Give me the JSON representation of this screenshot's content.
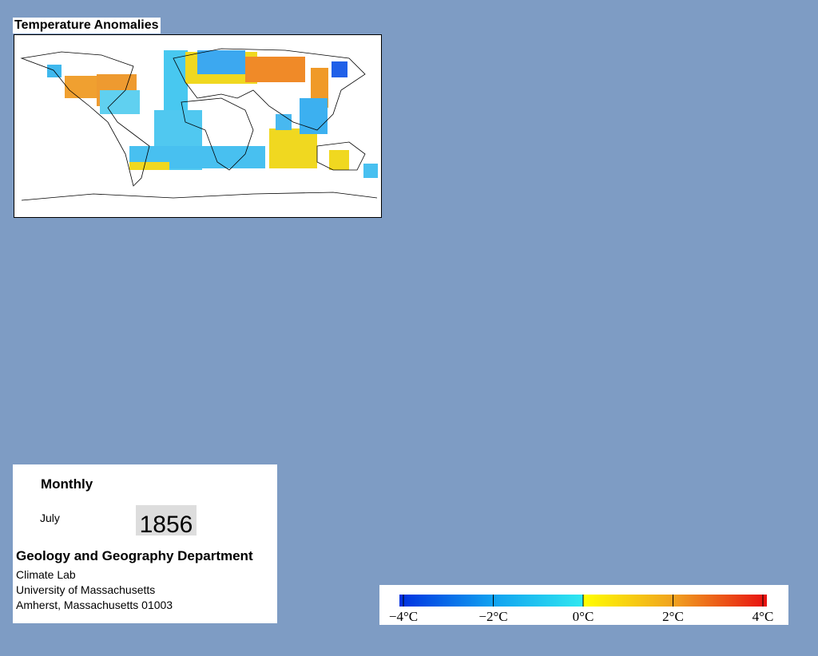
{
  "header": {
    "title": "Temperature Anomalies"
  },
  "info": {
    "period": "Monthly",
    "month": "July",
    "year": "1856",
    "department": "Geology and Geography Department",
    "address": [
      "Climate Lab",
      "University of Massachusetts",
      "Amherst, Massachusetts 01003"
    ]
  },
  "colorbar": {
    "labels": [
      "−4°C",
      "−2°C",
      "0°C",
      "2°C",
      "4°C"
    ]
  }
}
